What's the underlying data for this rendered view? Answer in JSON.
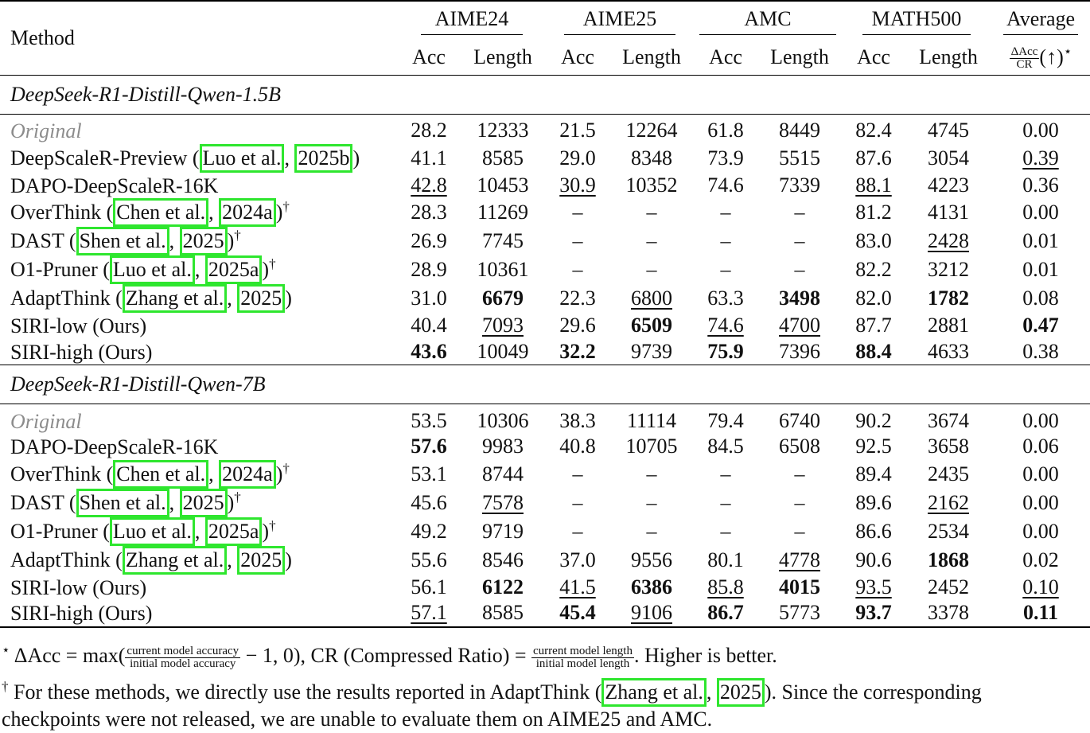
{
  "header": {
    "method": "Method",
    "groups": [
      "AIME24",
      "AIME25",
      "AMC",
      "MATH500",
      "Average"
    ],
    "acc": "Acc",
    "length": "Length",
    "avg_frac_num": "ΔAcc",
    "avg_frac_den": "CR",
    "avg_suffix": "(↑)",
    "avg_star": "⋆"
  },
  "sections": [
    {
      "title": "DeepSeek-R1-Distill-Qwen-1.5B",
      "rows": [
        {
          "pre": "Original",
          "cites": [],
          "post": "",
          "dag": "",
          "orig": true,
          "cells": [
            [
              "28.2",
              ""
            ],
            [
              "12333",
              ""
            ],
            [
              "21.5",
              ""
            ],
            [
              "12264",
              ""
            ],
            [
              "61.8",
              ""
            ],
            [
              "8449",
              ""
            ],
            [
              "82.4",
              ""
            ],
            [
              "4745",
              ""
            ],
            [
              "0.00",
              ""
            ]
          ]
        },
        {
          "pre": "DeepScaleR-Preview (",
          "cites": [
            "Luo et al.",
            "2025b"
          ],
          "post": ")",
          "dag": "",
          "cells": [
            [
              "41.1",
              ""
            ],
            [
              "8585",
              ""
            ],
            [
              "29.0",
              ""
            ],
            [
              "8348",
              ""
            ],
            [
              "73.9",
              ""
            ],
            [
              "5515",
              ""
            ],
            [
              "87.6",
              ""
            ],
            [
              "3054",
              ""
            ],
            [
              "0.39",
              "u"
            ]
          ]
        },
        {
          "pre": "DAPO-DeepScaleR-16K",
          "cites": [],
          "post": "",
          "dag": "",
          "cells": [
            [
              "42.8",
              "u"
            ],
            [
              "10453",
              ""
            ],
            [
              "30.9",
              "u"
            ],
            [
              "10352",
              ""
            ],
            [
              "74.6",
              ""
            ],
            [
              "7339",
              ""
            ],
            [
              "88.1",
              "u"
            ],
            [
              "4223",
              ""
            ],
            [
              "0.36",
              ""
            ]
          ]
        },
        {
          "pre": "OverThink (",
          "cites": [
            "Chen et al.",
            "2024a"
          ],
          "post": ")",
          "dag": "†",
          "cells": [
            [
              "28.3",
              ""
            ],
            [
              "11269",
              ""
            ],
            [
              "–",
              ""
            ],
            [
              "–",
              ""
            ],
            [
              "–",
              ""
            ],
            [
              "–",
              ""
            ],
            [
              "81.2",
              ""
            ],
            [
              "4131",
              ""
            ],
            [
              "0.00",
              ""
            ]
          ]
        },
        {
          "pre": "DAST (",
          "cites": [
            "Shen et al.",
            "2025"
          ],
          "post": ")",
          "dag": "†",
          "cells": [
            [
              "26.9",
              ""
            ],
            [
              "7745",
              ""
            ],
            [
              "–",
              ""
            ],
            [
              "–",
              ""
            ],
            [
              "–",
              ""
            ],
            [
              "–",
              ""
            ],
            [
              "83.0",
              ""
            ],
            [
              "2428",
              "u"
            ],
            [
              "0.01",
              ""
            ]
          ]
        },
        {
          "pre": "O1-Pruner (",
          "cites": [
            "Luo et al.",
            "2025a"
          ],
          "post": ")",
          "dag": "†",
          "cells": [
            [
              "28.9",
              ""
            ],
            [
              "10361",
              ""
            ],
            [
              "–",
              ""
            ],
            [
              "–",
              ""
            ],
            [
              "–",
              ""
            ],
            [
              "–",
              ""
            ],
            [
              "82.2",
              ""
            ],
            [
              "3212",
              ""
            ],
            [
              "0.01",
              ""
            ]
          ]
        },
        {
          "pre": "AdaptThink (",
          "cites": [
            "Zhang et al.",
            "2025"
          ],
          "post": ")",
          "dag": "",
          "cells": [
            [
              "31.0",
              ""
            ],
            [
              "6679",
              "b"
            ],
            [
              "22.3",
              ""
            ],
            [
              "6800",
              "u"
            ],
            [
              "63.3",
              ""
            ],
            [
              "3498",
              "b"
            ],
            [
              "82.0",
              ""
            ],
            [
              "1782",
              "b"
            ],
            [
              "0.08",
              ""
            ]
          ]
        },
        {
          "pre": "SIRI-low (Ours)",
          "cites": [],
          "post": "",
          "dag": "",
          "cells": [
            [
              "40.4",
              ""
            ],
            [
              "7093",
              "u"
            ],
            [
              "29.6",
              ""
            ],
            [
              "6509",
              "b"
            ],
            [
              "74.6",
              "u"
            ],
            [
              "4700",
              "u"
            ],
            [
              "87.7",
              ""
            ],
            [
              "2881",
              ""
            ],
            [
              "0.47",
              "b"
            ]
          ]
        },
        {
          "pre": "SIRI-high (Ours)",
          "cites": [],
          "post": "",
          "dag": "",
          "cells": [
            [
              "43.6",
              "b"
            ],
            [
              "10049",
              ""
            ],
            [
              "32.2",
              "b"
            ],
            [
              "9739",
              ""
            ],
            [
              "75.9",
              "b"
            ],
            [
              "7396",
              ""
            ],
            [
              "88.4",
              "b"
            ],
            [
              "4633",
              ""
            ],
            [
              "0.38",
              ""
            ]
          ]
        }
      ]
    },
    {
      "title": "DeepSeek-R1-Distill-Qwen-7B",
      "rows": [
        {
          "pre": "Original",
          "cites": [],
          "post": "",
          "dag": "",
          "orig": true,
          "cells": [
            [
              "53.5",
              ""
            ],
            [
              "10306",
              ""
            ],
            [
              "38.3",
              ""
            ],
            [
              "11114",
              ""
            ],
            [
              "79.4",
              ""
            ],
            [
              "6740",
              ""
            ],
            [
              "90.2",
              ""
            ],
            [
              "3674",
              ""
            ],
            [
              "0.00",
              ""
            ]
          ]
        },
        {
          "pre": "DAPO-DeepScaleR-16K",
          "cites": [],
          "post": "",
          "dag": "",
          "cells": [
            [
              "57.6",
              "b"
            ],
            [
              "9983",
              ""
            ],
            [
              "40.8",
              ""
            ],
            [
              "10705",
              ""
            ],
            [
              "84.5",
              ""
            ],
            [
              "6508",
              ""
            ],
            [
              "92.5",
              ""
            ],
            [
              "3658",
              ""
            ],
            [
              "0.06",
              ""
            ]
          ]
        },
        {
          "pre": "OverThink (",
          "cites": [
            "Chen et al.",
            "2024a"
          ],
          "post": ")",
          "dag": "†",
          "cells": [
            [
              "53.1",
              ""
            ],
            [
              "8744",
              ""
            ],
            [
              "–",
              ""
            ],
            [
              "–",
              ""
            ],
            [
              "–",
              ""
            ],
            [
              "–",
              ""
            ],
            [
              "89.4",
              ""
            ],
            [
              "2435",
              ""
            ],
            [
              "0.00",
              ""
            ]
          ]
        },
        {
          "pre": "DAST (",
          "cites": [
            "Shen et al.",
            "2025"
          ],
          "post": ")",
          "dag": "†",
          "cells": [
            [
              "45.6",
              ""
            ],
            [
              "7578",
              "u"
            ],
            [
              "–",
              ""
            ],
            [
              "–",
              ""
            ],
            [
              "–",
              ""
            ],
            [
              "–",
              ""
            ],
            [
              "89.6",
              ""
            ],
            [
              "2162",
              "u"
            ],
            [
              "0.00",
              ""
            ]
          ]
        },
        {
          "pre": "O1-Pruner (",
          "cites": [
            "Luo et al.",
            "2025a"
          ],
          "post": ")",
          "dag": "†",
          "cells": [
            [
              "49.2",
              ""
            ],
            [
              "9719",
              ""
            ],
            [
              "–",
              ""
            ],
            [
              "–",
              ""
            ],
            [
              "–",
              ""
            ],
            [
              "–",
              ""
            ],
            [
              "86.6",
              ""
            ],
            [
              "2534",
              ""
            ],
            [
              "0.00",
              ""
            ]
          ]
        },
        {
          "pre": "AdaptThink (",
          "cites": [
            "Zhang et al.",
            "2025"
          ],
          "post": ")",
          "dag": "",
          "cells": [
            [
              "55.6",
              ""
            ],
            [
              "8546",
              ""
            ],
            [
              "37.0",
              ""
            ],
            [
              "9556",
              ""
            ],
            [
              "80.1",
              ""
            ],
            [
              "4778",
              "u"
            ],
            [
              "90.6",
              ""
            ],
            [
              "1868",
              "b"
            ],
            [
              "0.02",
              ""
            ]
          ]
        },
        {
          "pre": "SIRI-low (Ours)",
          "cites": [],
          "post": "",
          "dag": "",
          "cells": [
            [
              "56.1",
              ""
            ],
            [
              "6122",
              "b"
            ],
            [
              "41.5",
              "u"
            ],
            [
              "6386",
              "b"
            ],
            [
              "85.8",
              "u"
            ],
            [
              "4015",
              "b"
            ],
            [
              "93.5",
              "u"
            ],
            [
              "2452",
              ""
            ],
            [
              "0.10",
              "u"
            ]
          ]
        },
        {
          "pre": "SIRI-high (Ours)",
          "cites": [],
          "post": "",
          "dag": "",
          "cells": [
            [
              "57.1",
              "u"
            ],
            [
              "8585",
              ""
            ],
            [
              "45.4",
              "b"
            ],
            [
              "9106",
              "u"
            ],
            [
              "86.7",
              "b"
            ],
            [
              "5773",
              ""
            ],
            [
              "93.7",
              "b"
            ],
            [
              "3378",
              ""
            ],
            [
              "0.11",
              "b"
            ]
          ]
        }
      ]
    }
  ],
  "notes": {
    "star": "⋆",
    "n1_a": "ΔAcc = max(",
    "n1_frac1_num": "current model accuracy",
    "n1_frac1_den": "initial model accuracy",
    "n1_b": " − 1, 0), CR (Compressed Ratio) = ",
    "n1_frac2_num": "current model length",
    "n1_frac2_den": "initial model length",
    "n1_c": ". Higher is better.",
    "dagger": "†",
    "n2_a": " For these methods, we directly use the results reported in AdaptThink (",
    "n2_cite1": "Zhang et al.",
    "n2_cite2": "2025",
    "n2_b": "). Since the corresponding",
    "n3": "checkpoints were not released, we are unable to evaluate them on AIME25 and AMC."
  }
}
